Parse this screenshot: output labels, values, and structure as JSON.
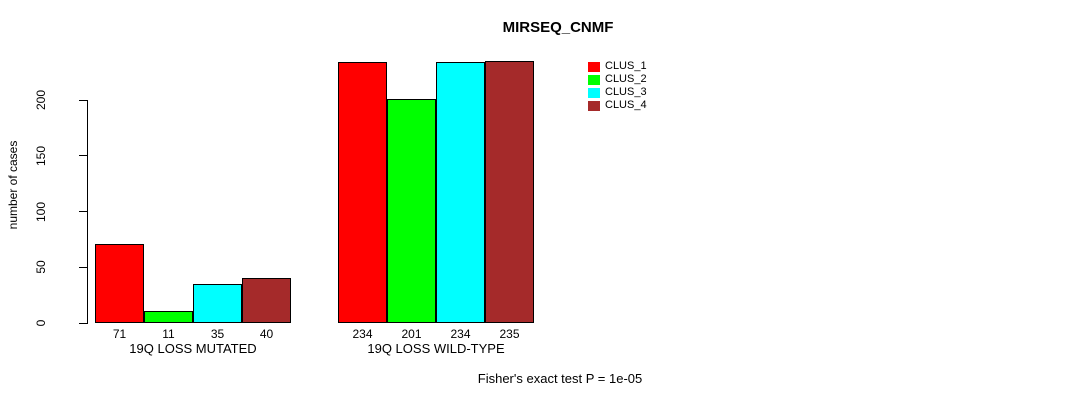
{
  "chart_data": {
    "type": "bar",
    "title": "MIRSEQ_CNMF",
    "xlabel": "",
    "ylabel": "number of cases",
    "ylim": [
      0,
      235
    ],
    "yticks": [
      0,
      50,
      100,
      150,
      200
    ],
    "grid": false,
    "legend_position": "top-right-inside",
    "categories": [
      "19Q LOSS MUTATED",
      "19Q LOSS WILD-TYPE"
    ],
    "series": [
      {
        "name": "CLUS_1",
        "color": "#ff0000",
        "values": [
          71,
          234
        ]
      },
      {
        "name": "CLUS_2",
        "color": "#00ff00",
        "values": [
          11,
          201
        ]
      },
      {
        "name": "CLUS_3",
        "color": "#00ffff",
        "values": [
          35,
          234
        ]
      },
      {
        "name": "CLUS_4",
        "color": "#a52a2a",
        "values": [
          40,
          235
        ]
      }
    ],
    "bar_value_labels": [
      [
        71,
        11,
        35,
        40
      ],
      [
        234,
        201,
        234,
        235
      ]
    ],
    "annotation": "Fisher's exact test P = 1e-05"
  }
}
